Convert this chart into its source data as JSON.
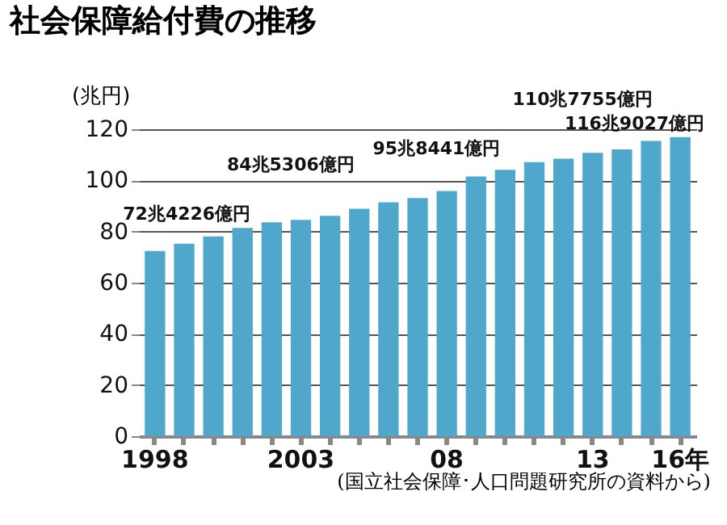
{
  "chart_data": {
    "type": "bar",
    "title": "社会保障給付費の推移",
    "ylabel": "(兆円)",
    "annotations": [
      "(国立社会保障･人口問題研究所の資料から)",
      {
        "text": "72兆4226億円",
        "x": "1998",
        "y": 72.4226
      },
      {
        "text": "84兆5306億円",
        "x": "2003",
        "y": 84.5306
      },
      {
        "text": "95兆8441億円",
        "x": "08",
        "y": 95.8441
      },
      {
        "text": "110兆7755億円",
        "x": "13",
        "y": 110.7755
      },
      {
        "text": "116兆9027億円",
        "x": "16年",
        "y": 116.9027
      }
    ],
    "categories": [
      "1998",
      null,
      null,
      null,
      null,
      "2003",
      null,
      null,
      null,
      null,
      "08",
      null,
      null,
      null,
      null,
      "13",
      null,
      null,
      "16年"
    ],
    "values": [
      72.4226,
      75.2,
      78.1,
      81.4,
      83.6,
      84.5306,
      86.1,
      88.9,
      91.4,
      93.1,
      95.8441,
      101.5,
      104.1,
      107.1,
      108.5,
      110.7755,
      112.1,
      115.4,
      116.9027
    ],
    "color": "#4fa8cc",
    "ylim": [
      0,
      120
    ],
    "yticks": [
      0,
      20,
      40,
      60,
      80,
      100,
      120
    ],
    "grid": "y"
  }
}
